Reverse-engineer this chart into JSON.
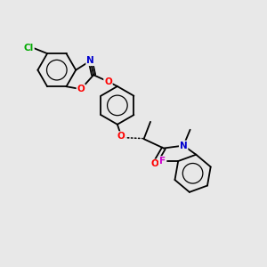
{
  "background_color": "#e8e8e8",
  "atom_colors": {
    "C": "#000000",
    "N": "#0000cd",
    "O": "#ff0000",
    "Cl": "#00aa00",
    "F": "#cc00cc"
  },
  "bond_color": "#000000",
  "figsize": [
    3.0,
    3.0
  ],
  "dpi": 100,
  "xlim": [
    0,
    10
  ],
  "ylim": [
    0,
    10
  ]
}
